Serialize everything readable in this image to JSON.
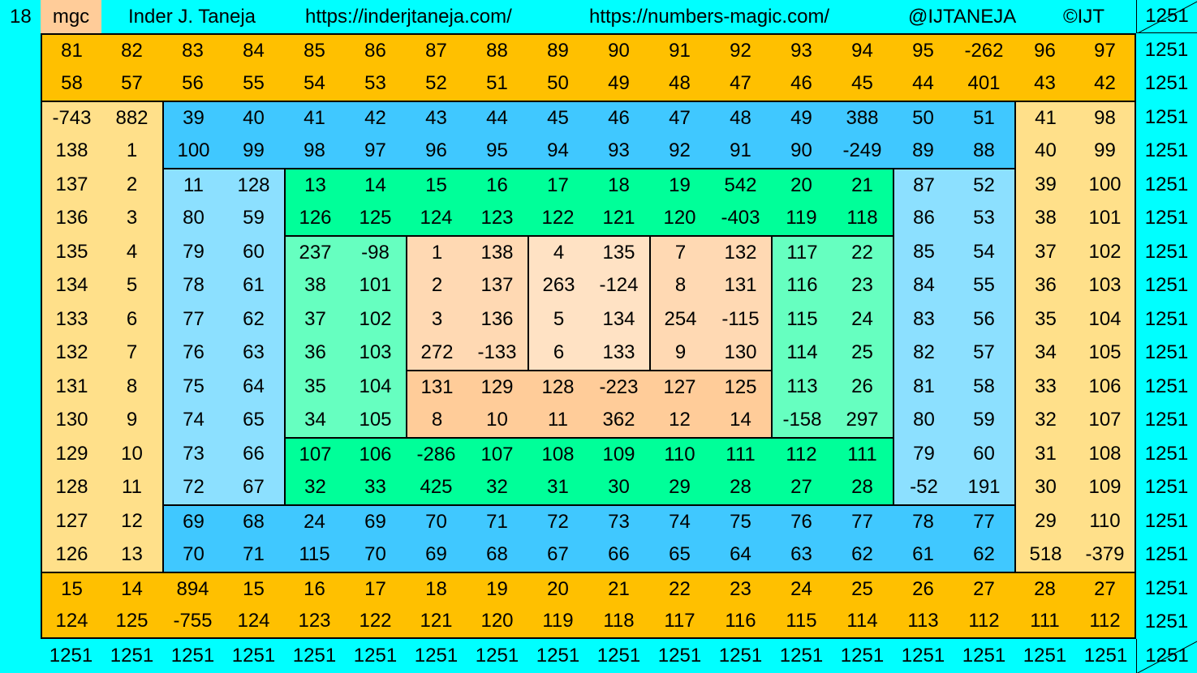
{
  "header": {
    "order": "18",
    "tag": "mgc",
    "author": "Inder J. Taneja",
    "site1": "https://inderjtaneja.com/",
    "site2": "https://numbers-magic.com/",
    "handle": "@IJTANEJA",
    "copyright": "©IJT",
    "corner_sum": "1251"
  },
  "colors": {
    "background": "#00FFFF",
    "tag": "#FFCC99",
    "outer_rows": "#FFC000",
    "outer_cols": "#FFE08A",
    "ring1_rows": "#40C8FF",
    "ring1_cols": "#8CE0FF",
    "ring2_rows": "#00FF99",
    "ring2_cols": "#66FFC0",
    "core_side": "#FFD9B3",
    "core_mid": "#FFE2C4",
    "core_bottom": "#FFCC99"
  },
  "grid": [
    [
      81,
      82,
      83,
      84,
      85,
      86,
      87,
      88,
      89,
      90,
      91,
      92,
      93,
      94,
      95,
      -262,
      96,
      97
    ],
    [
      58,
      57,
      56,
      55,
      54,
      53,
      52,
      51,
      50,
      49,
      48,
      47,
      46,
      45,
      44,
      401,
      43,
      42
    ],
    [
      -743,
      882,
      39,
      40,
      41,
      42,
      43,
      44,
      45,
      46,
      47,
      48,
      49,
      388,
      50,
      51,
      41,
      98
    ],
    [
      138,
      1,
      100,
      99,
      98,
      97,
      96,
      95,
      94,
      93,
      92,
      91,
      90,
      -249,
      89,
      88,
      40,
      99
    ],
    [
      137,
      2,
      11,
      128,
      13,
      14,
      15,
      16,
      17,
      18,
      19,
      542,
      20,
      21,
      87,
      52,
      39,
      100
    ],
    [
      136,
      3,
      80,
      59,
      126,
      125,
      124,
      123,
      122,
      121,
      120,
      -403,
      119,
      118,
      86,
      53,
      38,
      101
    ],
    [
      135,
      4,
      79,
      60,
      237,
      -98,
      1,
      138,
      4,
      135,
      7,
      132,
      117,
      22,
      85,
      54,
      37,
      102
    ],
    [
      134,
      5,
      78,
      61,
      38,
      101,
      2,
      137,
      263,
      -124,
      8,
      131,
      116,
      23,
      84,
      55,
      36,
      103
    ],
    [
      133,
      6,
      77,
      62,
      37,
      102,
      3,
      136,
      5,
      134,
      254,
      -115,
      115,
      24,
      83,
      56,
      35,
      104
    ],
    [
      132,
      7,
      76,
      63,
      36,
      103,
      272,
      -133,
      6,
      133,
      9,
      130,
      114,
      25,
      82,
      57,
      34,
      105
    ],
    [
      131,
      8,
      75,
      64,
      35,
      104,
      131,
      129,
      128,
      -223,
      127,
      125,
      113,
      26,
      81,
      58,
      33,
      106
    ],
    [
      130,
      9,
      74,
      65,
      34,
      105,
      8,
      10,
      11,
      362,
      12,
      14,
      -158,
      297,
      80,
      59,
      32,
      107
    ],
    [
      129,
      10,
      73,
      66,
      107,
      106,
      -286,
      107,
      108,
      109,
      110,
      111,
      112,
      111,
      79,
      60,
      31,
      108
    ],
    [
      128,
      11,
      72,
      67,
      32,
      33,
      425,
      32,
      31,
      30,
      29,
      28,
      27,
      28,
      -52,
      191,
      30,
      109
    ],
    [
      127,
      12,
      69,
      68,
      24,
      69,
      70,
      71,
      72,
      73,
      74,
      75,
      76,
      77,
      78,
      77,
      29,
      110
    ],
    [
      126,
      13,
      70,
      71,
      115,
      70,
      69,
      68,
      67,
      66,
      65,
      64,
      63,
      62,
      61,
      62,
      518,
      -379
    ],
    [
      15,
      14,
      894,
      15,
      16,
      17,
      18,
      19,
      20,
      21,
      22,
      23,
      24,
      25,
      26,
      27,
      28,
      27
    ],
    [
      124,
      125,
      -755,
      124,
      123,
      122,
      121,
      120,
      119,
      118,
      117,
      116,
      115,
      114,
      113,
      112,
      111,
      112
    ]
  ],
  "row_sums": [
    "1251",
    "1251",
    "1251",
    "1251",
    "1251",
    "1251",
    "1251",
    "1251",
    "1251",
    "1251",
    "1251",
    "1251",
    "1251",
    "1251",
    "1251",
    "1251",
    "1251",
    "1251"
  ],
  "col_sums": [
    "1251",
    "1251",
    "1251",
    "1251",
    "1251",
    "1251",
    "1251",
    "1251",
    "1251",
    "1251",
    "1251",
    "1251",
    "1251",
    "1251",
    "1251",
    "1251",
    "1251",
    "1251"
  ],
  "bottom_corner_sum": "1251"
}
